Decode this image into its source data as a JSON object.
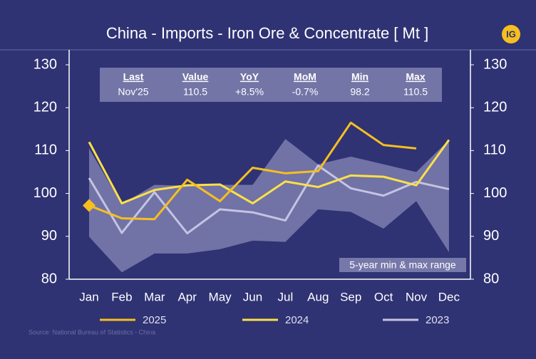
{
  "chart_data": {
    "type": "line",
    "title": "China - Imports - Iron Ore & Concentrate [ Mt ]",
    "logo": "IG",
    "source": "Source: National Bureau of Statistics - China",
    "categories": [
      "Jan",
      "Feb",
      "Mar",
      "Apr",
      "May",
      "Jun",
      "Jul",
      "Aug",
      "Sep",
      "Oct",
      "Nov",
      "Dec"
    ],
    "series": [
      {
        "name": "2025",
        "color": "#f6bf1f",
        "marker": "diamond",
        "values": [
          97.2,
          94.2,
          94.0,
          103.2,
          98.2,
          106.0,
          104.7,
          105.2,
          116.5,
          111.3,
          110.5,
          null
        ]
      },
      {
        "name": "2024",
        "color": "#fbe04a",
        "values": [
          112.0,
          97.7,
          100.8,
          101.9,
          102.1,
          97.7,
          102.8,
          101.5,
          104.2,
          103.9,
          101.9,
          112.5
        ]
      },
      {
        "name": "2023",
        "color": "#c4c4e2",
        "values": [
          103.6,
          90.8,
          100.3,
          90.7,
          96.3,
          95.6,
          93.7,
          106.5,
          101.2,
          99.5,
          102.7,
          101.0
        ]
      }
    ],
    "range": {
      "label": "5-year min & max range",
      "color": "#a7a7cf",
      "max": [
        110.5,
        97.5,
        102.0,
        101.8,
        102.0,
        102.0,
        112.7,
        106.8,
        108.6,
        106.8,
        105.0,
        112.5
      ],
      "min": [
        89.9,
        81.6,
        86.0,
        86.0,
        87.0,
        89.0,
        88.7,
        96.3,
        95.7,
        91.8,
        98.2,
        86.3
      ]
    },
    "summary": {
      "headers": [
        "Last",
        "Value",
        "YoY",
        "MoM",
        "Min",
        "Max"
      ],
      "values": [
        "Nov'25",
        "110.5",
        "+8.5%",
        "-0.7%",
        "98.2",
        "110.5"
      ]
    },
    "ylim": [
      80,
      130
    ],
    "yticks": [
      80,
      90,
      100,
      110,
      120,
      130
    ],
    "y2lim": [
      80,
      130
    ],
    "y2ticks": [
      80,
      90,
      100,
      110,
      120,
      130
    ],
    "grid": false
  }
}
